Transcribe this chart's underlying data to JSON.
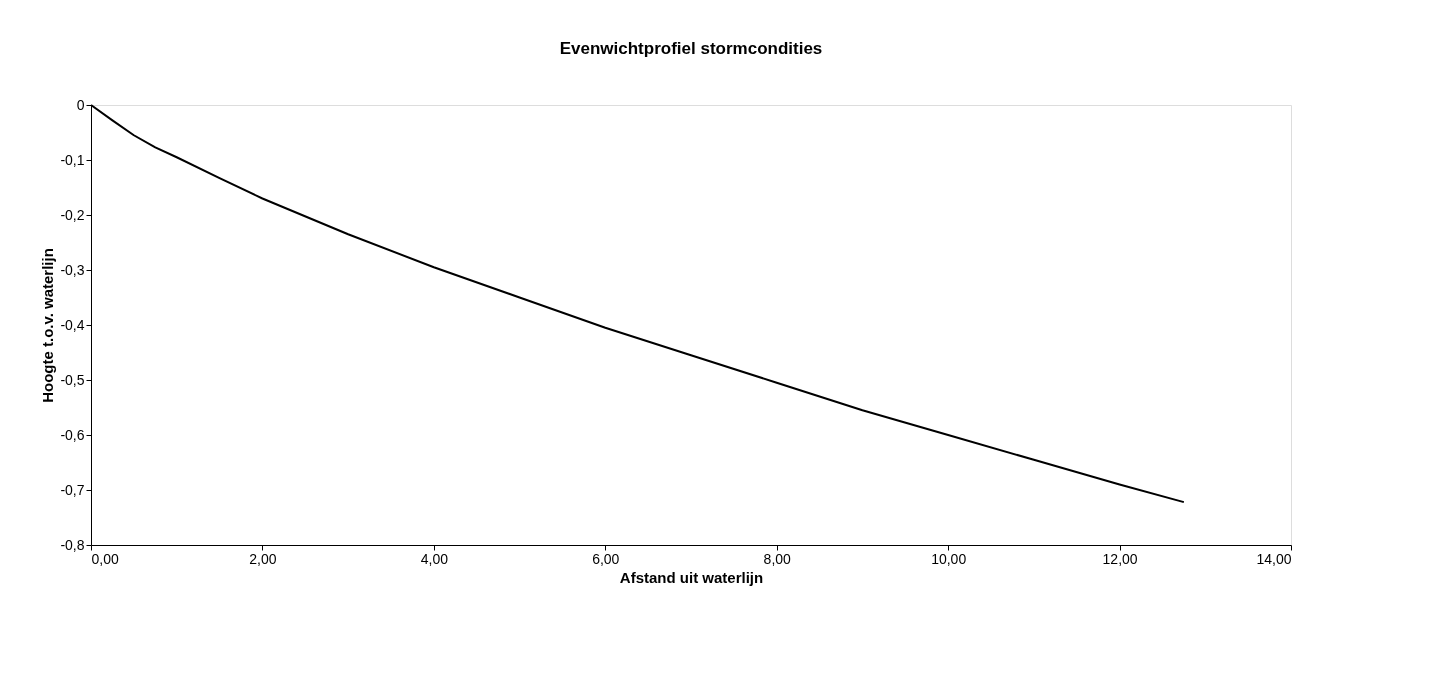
{
  "chart_data": {
    "type": "line",
    "title": "Evenwichtprofiel stormcondities",
    "xlabel": "Afstand uit waterlijn",
    "ylabel": "Hoogte t.o.v. waterlijn",
    "x": [
      0,
      0.25,
      0.5,
      0.75,
      1,
      1.5,
      2,
      3,
      4,
      5,
      6,
      7,
      8,
      9,
      10,
      11,
      12,
      12.75
    ],
    "series": [
      {
        "color": "#000000",
        "values": [
          0,
          -0.028,
          -0.055,
          -0.077,
          -0.095,
          -0.133,
          -0.17,
          -0.235,
          -0.295,
          -0.35,
          -0.405,
          -0.455,
          -0.505,
          -0.555,
          -0.6,
          -0.645,
          -0.69,
          -0.722
        ]
      }
    ],
    "xlim": [
      0,
      14
    ],
    "xticks": [
      {
        "value": 0,
        "label": "0,00"
      },
      {
        "value": 2,
        "label": "2,00"
      },
      {
        "value": 4,
        "label": "4,00"
      },
      {
        "value": 6,
        "label": "6,00"
      },
      {
        "value": 8,
        "label": "8,00"
      },
      {
        "value": 10,
        "label": "10,00"
      },
      {
        "value": 12,
        "label": "12,00"
      },
      {
        "value": 14,
        "label": "14,00"
      }
    ],
    "ylim": [
      -0.8,
      0
    ],
    "yticks": [
      {
        "value": -0.8,
        "label": "-0,8"
      },
      {
        "value": -0.7,
        "label": "-0,7"
      },
      {
        "value": -0.6,
        "label": "-0,6"
      },
      {
        "value": -0.5,
        "label": "-0,5"
      },
      {
        "value": -0.4,
        "label": "-0,4"
      },
      {
        "value": -0.3,
        "label": "-0,3"
      },
      {
        "value": -0.2,
        "label": "-0,2"
      },
      {
        "value": -0.1,
        "label": "-0,1"
      },
      0
    ],
    "grid": false,
    "marker": "none",
    "line_style": "solid"
  }
}
